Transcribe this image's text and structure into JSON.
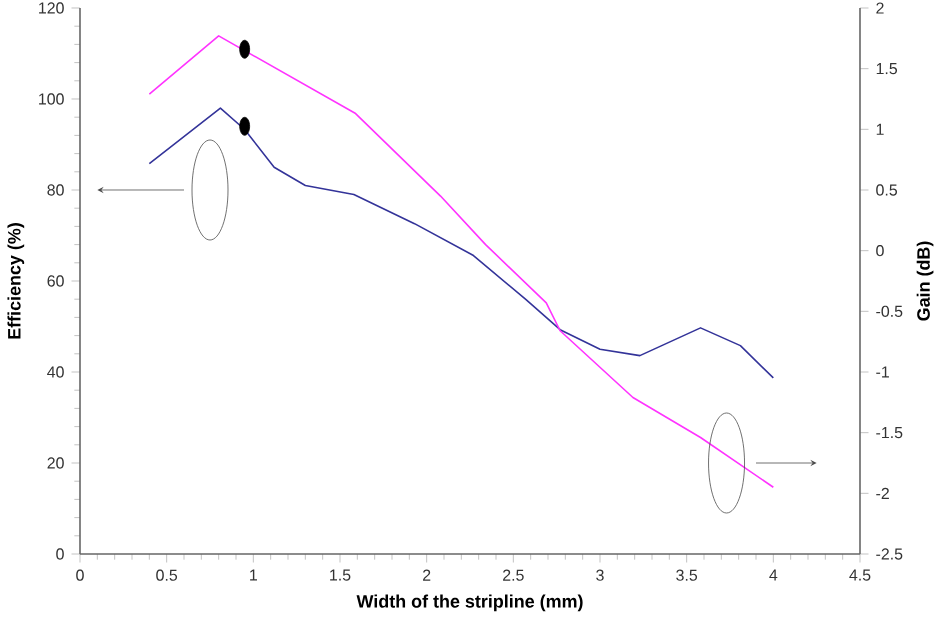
{
  "chart_data": {
    "type": "line",
    "xlabel": "Width of the stripline (mm)",
    "ylabel": "Efficiency (%)",
    "y2label": "Gain (dB)",
    "xlim": [
      0,
      4.5
    ],
    "xticks": [
      0,
      0.5,
      1,
      1.5,
      2,
      2.5,
      3,
      3.5,
      4,
      4.5
    ],
    "ylim": [
      0,
      120
    ],
    "yticks": [
      0,
      20,
      40,
      60,
      80,
      100,
      120
    ],
    "y2lim": [
      -2.5,
      2
    ],
    "y2ticks": [
      -2.5,
      -2,
      -1.5,
      -1,
      -0.5,
      0,
      0.5,
      1,
      1.5,
      2
    ],
    "series": [
      {
        "color": "#333399",
        "x": [
          0.4,
          0.81,
          0.95,
          1.12,
          1.3,
          1.58,
          1.93,
          2.27,
          2.57,
          2.77,
          3.0,
          3.23,
          3.58,
          3.81,
          4.0
        ],
        "values": [
          85.8,
          98,
          93.3,
          85,
          81,
          79,
          72.6,
          65.6,
          56,
          49.3,
          45,
          43.6,
          49.7,
          45.8,
          38.7
        ]
      },
      {
        "color": "#ff33ff",
        "axis": "y2",
        "x": [
          0.4,
          0.8,
          1.59,
          2.08,
          2.34,
          2.69,
          2.77,
          3.19,
          3.58,
          4.0
        ],
        "values": [
          1.29,
          1.77,
          1.13,
          0.45,
          0.05,
          -0.43,
          -0.66,
          -1.21,
          -1.54,
          -1.95
        ]
      },
      {
        "type": "scatter",
        "marker": "circle",
        "color": "#000000",
        "x": [
          0.95
        ],
        "values": [
          94
        ]
      },
      {
        "type": "scatter",
        "marker": "circle",
        "color": "#000000",
        "axis": "y2",
        "x": [
          0.95
        ],
        "values": [
          1.66
        ]
      }
    ]
  }
}
